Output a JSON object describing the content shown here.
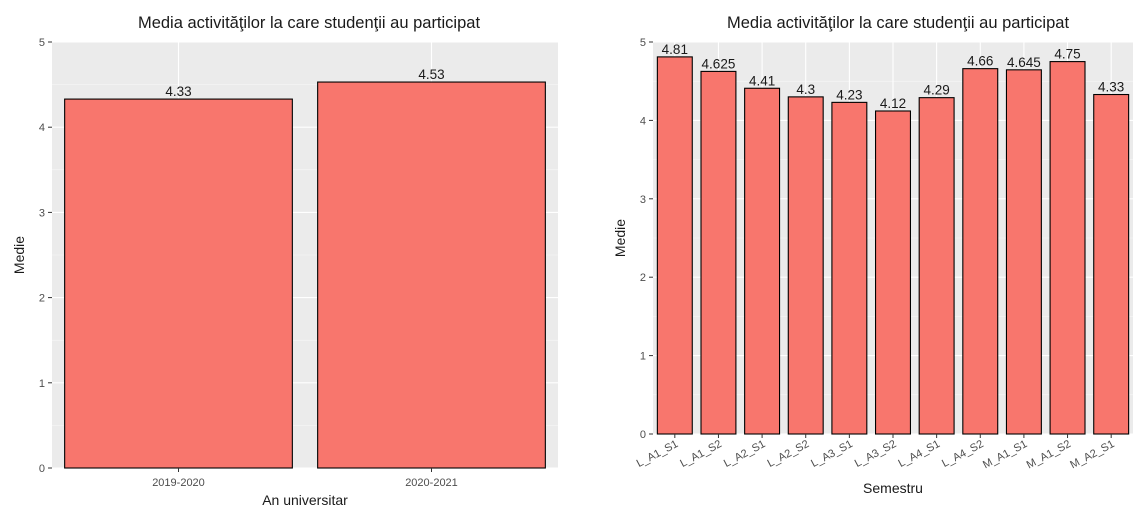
{
  "colors": {
    "panel_background": "#ebebeb",
    "grid_major": "#ffffff",
    "bar_fill": "#f8766d",
    "bar_stroke": "#000000",
    "text": "#1a1a1a",
    "tick_text": "#4d4d4d"
  },
  "chart_data": [
    {
      "type": "bar",
      "title": "Media activităţilor la care studenţii au participat",
      "xlabel": "An universitar",
      "ylabel": "Medie",
      "categories": [
        "2019-2020",
        "2020-2021"
      ],
      "values": [
        4.33,
        4.53
      ],
      "value_labels": [
        "4.33",
        "4.53"
      ],
      "ylim": [
        0,
        5
      ],
      "yticks": [
        0,
        1,
        2,
        3,
        4,
        5
      ],
      "grid": true,
      "legend": "none"
    },
    {
      "type": "bar",
      "title": "Media activităţilor la care studenţii au participat",
      "xlabel": "Semestru",
      "ylabel": "Medie",
      "categories": [
        "L_A1_S1",
        "L_A1_S2",
        "L_A2_S1",
        "L_A2_S2",
        "L_A3_S1",
        "L_A3_S2",
        "L_A4_S1",
        "L_A4_S2",
        "M_A1_S1",
        "M_A1_S2",
        "M_A2_S1"
      ],
      "values": [
        4.81,
        4.625,
        4.41,
        4.3,
        4.23,
        4.12,
        4.29,
        4.66,
        4.645,
        4.75,
        4.33
      ],
      "value_labels": [
        "4.81",
        "4.625",
        "4.41",
        "4.3",
        "4.23",
        "4.12",
        "4.29",
        "4.66",
        "4.645",
        "4.75",
        "4.33"
      ],
      "ylim": [
        0,
        5
      ],
      "yticks": [
        0,
        1,
        2,
        3,
        4,
        5
      ],
      "grid": true,
      "legend": "none"
    }
  ]
}
